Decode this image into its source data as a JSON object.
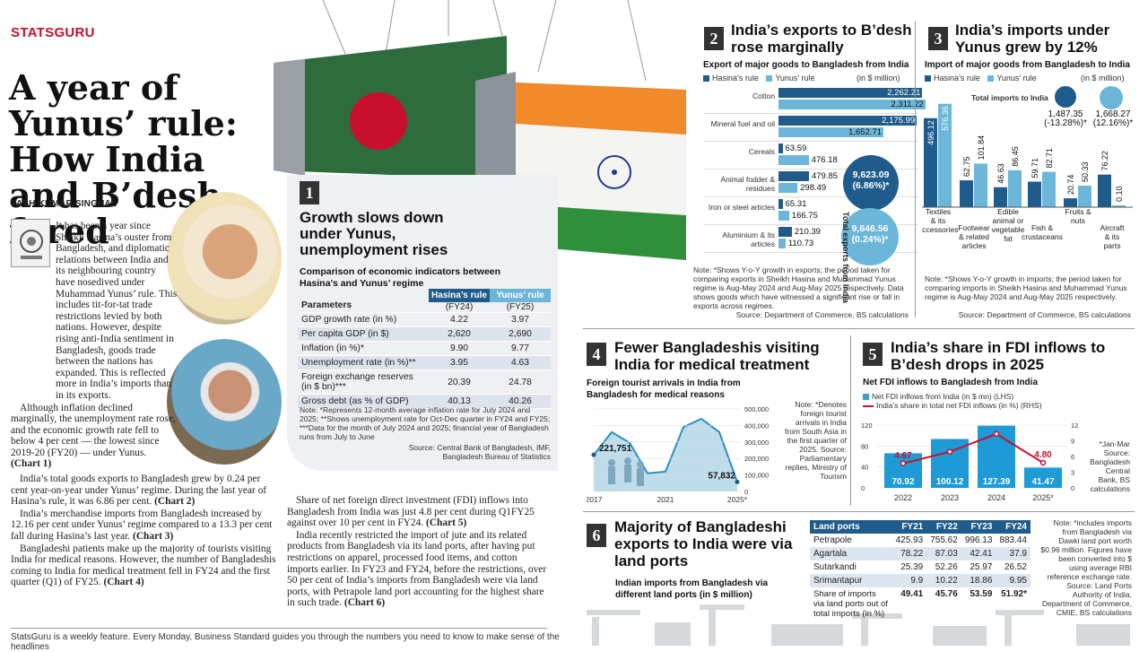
{
  "brand": "STATSGURU",
  "headline": "A year of Yunus’ rule: How India and B’desh fared",
  "byline": "YASH KUMAR SINGHAL",
  "article": {
    "col1": [
      {
        "text": "It has been a year since Sheikh Hasina’s ouster from Bangladesh, and diplomatic relations between India and its neighbouring country have nosedived under Muhammad Yunus’ rule. This includes tit-for-tat trade restrictions levied by both nations. However, despite rising anti-India sentiment in Bangladesh, goods trade between the nations has expanded. This is reflected more in India’s imports than in its exports.",
        "ref": ""
      },
      {
        "text": "Although inflation declined marginally, the unemployment rate rose, and the economic growth rate fell to below 4 per cent — the lowest since 2019-20 (FY20) — under Yunus.",
        "ref": "(Chart 1)"
      },
      {
        "text": "India’s total goods exports to Bangladesh grew by 0.24 per cent year-on-year under Yunus’ regime. During the last year of Hasina’s rule, it was 6.86 per cent.",
        "ref": "(Chart 2)"
      },
      {
        "text": "India’s merchandise imports from Bangladesh increased by 12.16 per cent under Yunus’ regime compared to a 13.3 per cent fall during Hasina’s last year.",
        "ref": "(Chart 3)"
      },
      {
        "text": "Bangladeshi patients make up the majority of tourists visiting India for medical reasons. However, the number of Bangladeshis coming to India for medical treatment fell in FY24 and the first quarter (Q1) of FY25.",
        "ref": "(Chart 4)"
      }
    ],
    "col2": [
      {
        "text": "Share of net foreign direct investment (FDI) inflows into Bangladesh from India was just 4.8 per cent during Q1FY25 against over 10 per cent in FY24.",
        "ref": "(Chart 5)"
      },
      {
        "text": "India recently restricted the import of jute and its related products from Bangladesh via its land ports, after having put restrictions on apparel, processed food items, and cotton imports earlier. In FY23 and FY24, before the restrictions, over 50 per cent of India’s imports from Bangladesh were via land ports, with Petrapole land port accounting for the highest share in such trade.",
        "ref": "(Chart 6)"
      }
    ]
  },
  "footer": "StatsGuru is a weekly feature. Every Monday, Business Standard guides you through the numbers you need to know to make sense of the headlines",
  "chart1": {
    "num": "1",
    "title": "Growth slows down under Yunus, unemployment rises",
    "subtitle": "Comparison of economic indicators between Hasina’s and Yunus’ regime",
    "col_params": "Parameters",
    "col_hasina": "Hasina’s rule",
    "col_hasina_sub": "(FY24)",
    "col_yunus": "Yunus’ rule",
    "col_yunus_sub": "(FY25)",
    "rows": [
      {
        "p": "GDP growth rate (in %)",
        "h": "4.22",
        "y": "3.97"
      },
      {
        "p": "Per capita GDP (in $)",
        "h": "2,620",
        "y": "2,690"
      },
      {
        "p": "Inflation (in %)*",
        "h": "9.90",
        "y": "9.77"
      },
      {
        "p": "Unemployment rate (in %)**",
        "h": "3.95",
        "y": "4.63"
      },
      {
        "p": "Foreign exchange reserves (in $ bn)***",
        "h": "20.39",
        "y": "24.78"
      },
      {
        "p": "Gross debt (as % of GDP)",
        "h": "40.13",
        "y": "40.26"
      }
    ],
    "note": "Note: *Represents 12-month average inflation rate for July 2024 and 2025; **Shows unemployment rate for Oct-Dec quarter in FY24 and FY25; ***Data for the month of July 2024 and 2025; financial year of Bangladesh runs from July to June",
    "source": "Source: Central Bank of Bangladesh, IMF, Bangladesh Bureau of Statistics"
  },
  "chart2": {
    "num": "2",
    "title": "India’s exports to B’desh rose marginally",
    "subtitle": "Export of major goods to Bangladesh from India",
    "unit": "(in $ million)",
    "legend_h": "Hasina’s rule",
    "legend_y": "Yunus’ rule",
    "bubble_h": "9,623.09",
    "bubble_h_pct": "(6.86%)*",
    "bubble_y": "9,646.56",
    "bubble_y_pct": "(0.24%)*",
    "vertical_label": "Total exports from India",
    "note": "Note: *Shows Y-o-Y growth in exports; the period taken for comparing exports in Sheikh Hasina and Muhammad Yunus regime is Aug-May 2024 and Aug-May 2025 respectively. Data shows goods which have witnessed a significant rise or fall in exports across regimes.",
    "source": "Source: Department of Commerce, BS calculations"
  },
  "chart3": {
    "num": "3",
    "title": "India’s imports under Yunus grew by 12%",
    "subtitle": "Import of major goods from Bangladesh to India",
    "unit": "(in $ million)",
    "legend_h": "Hasina’s rule",
    "legend_y": "Yunus’ rule",
    "total_label": "Total imports to India",
    "total_h": "1,487.35",
    "total_h_pct": "(-13.28%)*",
    "total_y": "1,668.27",
    "total_y_pct": "(12.16%)*",
    "note": "Note: *Shows Y-o-Y growth in imports; the period taken for comparing imports in Sheikh Hasina and Muhammad Yunus regime is Aug-May 2024 and Aug-May 2025 respectively.",
    "source": "Source: Department of Commerce, BS calculations"
  },
  "chart4": {
    "num": "4",
    "title": "Fewer Bangladeshis visiting India for medical treatment",
    "subtitle": "Foreign tourist arrivals in India from Bangladesh for medical reasons",
    "label_first": "221,751",
    "label_last": "57,832",
    "note": "Note: *Denotes foreign tourist arrivals in India from South Asia in the first quarter of 2025. Source: Parliamentary replies, Ministry of Tourism"
  },
  "chart5": {
    "num": "5",
    "title": "India’s share in FDI inflows to B’desh drops in 2025",
    "subtitle": "Net FDI inflows to Bangladesh from India",
    "legend_bar": "Net FDI inflows from India (in $ mn) (LHS)",
    "legend_line": "India’s share in total net FDI inflows (in %) (RHS)",
    "note": "*Jan-Mar Source: Bangladesh Central Bank, BS calculations"
  },
  "chart6": {
    "num": "6",
    "title": "Majority of Bangladeshi exports to India were via land ports",
    "subtitle": "Indian imports from Bangladesh via different land ports (in $ million)",
    "col_label": "Land ports",
    "years": [
      "FY21",
      "FY22",
      "FY23",
      "FY24"
    ],
    "rows": [
      {
        "name": "Petrapole",
        "v": [
          "425.93",
          "755.62",
          "996.13",
          "883.44"
        ]
      },
      {
        "name": "Agartala",
        "v": [
          "78.22",
          "87.03",
          "42.41",
          "37.9"
        ]
      },
      {
        "name": "Sutarkandi",
        "v": [
          "25.39",
          "52.26",
          "25.97",
          "26.52"
        ]
      },
      {
        "name": "Srimantapur",
        "v": [
          "9.9",
          "10.22",
          "18.86",
          "9.95"
        ]
      }
    ],
    "share_label": "Share of imports via land ports out of total imports (in %)",
    "share": [
      "49.41",
      "45.76",
      "53.59",
      "51.92*"
    ],
    "note": "Note: *includes imports from Bangladesh via Dawki land port worth $0.96 million. Figures have been converted into $ using average RBI reference exchange rate. Source: Land Ports Authority of India, Department of Commerce, CMIE, BS calculations"
  },
  "chart_data": [
    {
      "type": "bar",
      "orientation": "horizontal",
      "categories": [
        "Cotton",
        "Mineral fuel and oil",
        "Cereals",
        "Animal fodder & residues",
        "Iron or steel articles",
        "Aluminium & its articles"
      ],
      "series": [
        {
          "name": "Hasina’s rule",
          "values": [
            2262.21,
            2175.99,
            63.59,
            479.85,
            65.31,
            210.39
          ]
        },
        {
          "name": "Yunus’ rule",
          "values": [
            2311.22,
            1652.71,
            476.18,
            298.49,
            166.75,
            110.73
          ]
        }
      ],
      "value_labels": [
        [
          "2,262.21",
          "2,175.99",
          "63.59",
          "479.85",
          "65.31",
          "210.39"
        ],
        [
          "2,311.22",
          "1,652.71",
          "476.18",
          "298.49",
          "166.75",
          "110.73"
        ]
      ]
    },
    {
      "type": "bar",
      "categories": [
        "Textiles & its accessories",
        "Footwear & related articles",
        "Edible animal or vegetable fat",
        "Fish & crustaceans",
        "Fruits & nuts",
        "Aircraft & its parts"
      ],
      "series": [
        {
          "name": "Hasina’s rule",
          "values": [
            496.12,
            62.75,
            46.63,
            59.71,
            20.74,
            76.22
          ]
        },
        {
          "name": "Yunus’ rule",
          "values": [
            576.36,
            101.84,
            86.45,
            82.71,
            50.33,
            0.1
          ]
        }
      ],
      "value_labels": [
        [
          "496.12",
          "62.75",
          "46.63",
          "59.71",
          "20.74",
          "76.22"
        ],
        [
          "576.36",
          "101.84",
          "86.45",
          "82.71",
          "50.33",
          "0.10"
        ]
      ]
    },
    {
      "type": "area",
      "x": [
        2017,
        2018,
        2019,
        2020,
        2021,
        2022,
        2023,
        2024,
        "2025*"
      ],
      "y": [
        221751,
        360000,
        295000,
        110000,
        120000,
        390000,
        440000,
        360000,
        57832
      ],
      "x_ticks": [
        "2017",
        "2021",
        "2025*"
      ],
      "y_ticks": [
        "0",
        "100,000",
        "200,000",
        "300,000",
        "400,000",
        "500,000"
      ],
      "ylim": [
        0,
        500000
      ]
    },
    {
      "type": "bar",
      "categories": [
        "2022",
        "2023",
        "2024",
        "2025*"
      ],
      "series": [
        {
          "name": "Net FDI inflows from India (in $ mn) (LHS)",
          "values": [
            70.92,
            100.12,
            127.39,
            41.47
          ],
          "labels": [
            "70.92",
            "100.12",
            "127.39",
            "41.47"
          ]
        },
        {
          "name": "India’s share in total net FDI inflows (in %) (RHS)",
          "values": [
            4.67,
            6.9,
            10.3,
            4.8
          ],
          "labels": [
            "4.67",
            "",
            "",
            "4.80"
          ]
        }
      ],
      "y_ticks_lhs": [
        "0",
        "40",
        "80",
        "120"
      ],
      "y_ticks_rhs": [
        "0",
        "3",
        "6",
        "9",
        "12"
      ],
      "ylim_lhs": [
        0,
        135
      ],
      "ylim_rhs": [
        0,
        12
      ]
    }
  ],
  "colors": {
    "dark": "#1f5c8c",
    "light": "#6cb7d9",
    "red": "#c8102e",
    "panel": "#eef0f4"
  }
}
